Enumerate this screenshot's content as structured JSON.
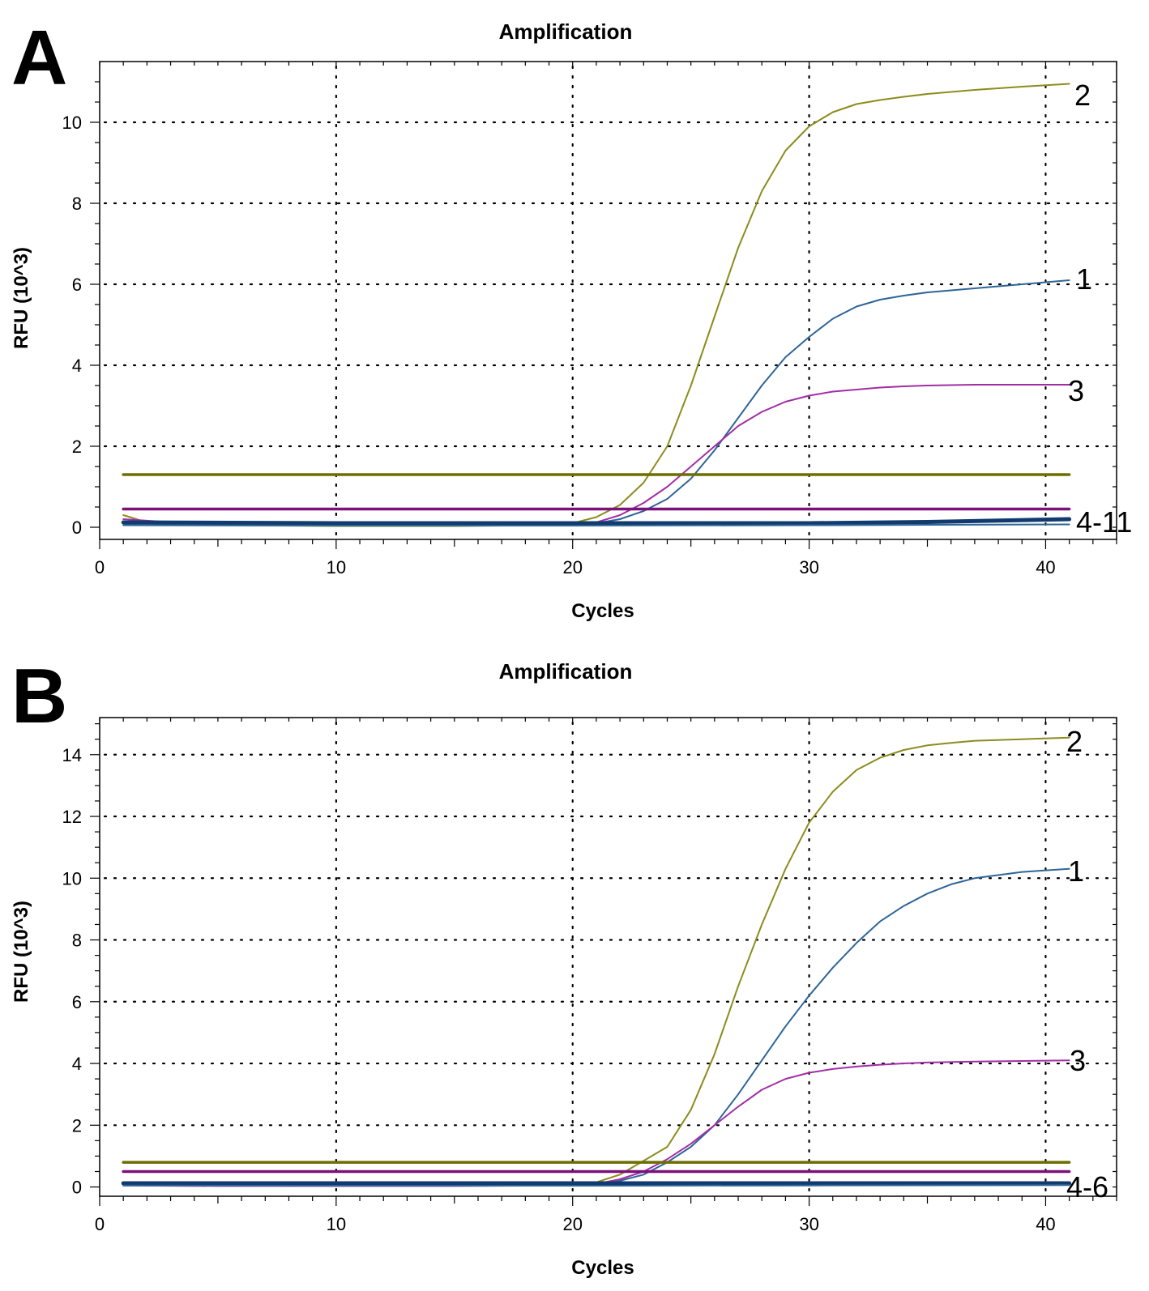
{
  "colors": {
    "olive": "#8c8c1e",
    "blue": "#2e6597",
    "magenta": "#a22ea5",
    "olive_threshold": "#6e6e00",
    "magenta_threshold": "#7b117b",
    "navy": "#113a6e"
  },
  "chart_data": [
    {
      "panel_label": "A",
      "type": "line",
      "title": "Amplification",
      "xlabel": "Cycles",
      "ylabel": "RFU (10^3)",
      "xlim": [
        0,
        43
      ],
      "ylim": [
        -0.3,
        11.5
      ],
      "xticks": [
        0,
        10,
        20,
        30,
        40
      ],
      "yticks": [
        0,
        2,
        4,
        6,
        8,
        10
      ],
      "grid": true,
      "series": [
        {
          "name": "2",
          "label": "2",
          "color": "olive",
          "x": [
            1,
            2,
            5,
            10,
            15,
            19,
            20,
            21,
            22,
            23,
            24,
            25,
            26,
            27,
            28,
            29,
            30,
            31,
            32,
            33,
            34,
            35,
            37,
            39,
            41
          ],
          "y": [
            0.3,
            0.12,
            0.05,
            0.03,
            0.03,
            0.05,
            0.1,
            0.25,
            0.55,
            1.1,
            2.0,
            3.5,
            5.2,
            6.9,
            8.3,
            9.3,
            9.9,
            10.25,
            10.45,
            10.55,
            10.63,
            10.7,
            10.8,
            10.88,
            10.95
          ]
        },
        {
          "name": "1",
          "label": "1",
          "color": "blue",
          "x": [
            1,
            5,
            10,
            15,
            20,
            21,
            22,
            23,
            24,
            25,
            26,
            27,
            28,
            29,
            30,
            31,
            32,
            33,
            34,
            35,
            37,
            39,
            41
          ],
          "y": [
            0.1,
            0.05,
            0.05,
            0.05,
            0.06,
            0.1,
            0.2,
            0.4,
            0.7,
            1.2,
            1.9,
            2.7,
            3.5,
            4.2,
            4.7,
            5.15,
            5.45,
            5.62,
            5.72,
            5.8,
            5.9,
            6.0,
            6.1
          ]
        },
        {
          "name": "3",
          "label": "3",
          "color": "magenta",
          "x": [
            1,
            5,
            10,
            15,
            20,
            21,
            22,
            23,
            24,
            25,
            26,
            27,
            28,
            29,
            30,
            31,
            32,
            33,
            34,
            35,
            37,
            39,
            41
          ],
          "y": [
            0.2,
            0.05,
            0.05,
            0.05,
            0.06,
            0.12,
            0.3,
            0.6,
            1.0,
            1.5,
            2.0,
            2.5,
            2.85,
            3.1,
            3.25,
            3.35,
            3.4,
            3.45,
            3.48,
            3.5,
            3.52,
            3.52,
            3.52
          ]
        },
        {
          "name": "threshold-olive",
          "color": "olive_threshold",
          "x": [
            1,
            41
          ],
          "y": [
            1.3,
            1.3
          ]
        },
        {
          "name": "threshold-magenta",
          "color": "magenta_threshold",
          "x": [
            1,
            41
          ],
          "y": [
            0.45,
            0.45
          ]
        },
        {
          "name": "4-11",
          "label": "4-11",
          "color": "navy",
          "x": [
            1,
            10,
            20,
            30,
            35,
            41
          ],
          "y": [
            0.12,
            0.1,
            0.1,
            0.1,
            0.13,
            0.2
          ]
        },
        {
          "name": "4-11-base",
          "color": "blue",
          "x": [
            1,
            10,
            20,
            30,
            41
          ],
          "y": [
            0.05,
            0.04,
            0.04,
            0.05,
            0.07
          ]
        }
      ],
      "annotations": [
        "2",
        "1",
        "3",
        "4-11"
      ]
    },
    {
      "panel_label": "B",
      "type": "line",
      "title": "Amplification",
      "xlabel": "Cycles",
      "ylabel": "RFU (10^3)",
      "xlim": [
        0,
        43
      ],
      "ylim": [
        -0.3,
        15.2
      ],
      "xticks": [
        0,
        10,
        20,
        30,
        40
      ],
      "yticks": [
        0,
        2,
        4,
        6,
        8,
        10,
        12,
        14
      ],
      "grid": true,
      "series": [
        {
          "name": "2",
          "label": "2",
          "color": "olive",
          "x": [
            1,
            5,
            10,
            15,
            20,
            21,
            22,
            23,
            24,
            25,
            26,
            27,
            28,
            29,
            30,
            31,
            32,
            33,
            34,
            35,
            36,
            37,
            39,
            41
          ],
          "y": [
            0.1,
            0.05,
            0.05,
            0.05,
            0.07,
            0.15,
            0.4,
            0.85,
            1.3,
            2.5,
            4.3,
            6.5,
            8.5,
            10.3,
            11.8,
            12.8,
            13.5,
            13.9,
            14.15,
            14.3,
            14.38,
            14.45,
            14.5,
            14.55
          ]
        },
        {
          "name": "1",
          "label": "1",
          "color": "blue",
          "x": [
            1,
            5,
            10,
            15,
            20,
            21,
            22,
            23,
            24,
            25,
            26,
            27,
            28,
            29,
            30,
            31,
            32,
            33,
            34,
            35,
            36,
            37,
            39,
            41
          ],
          "y": [
            0.1,
            0.05,
            0.05,
            0.05,
            0.06,
            0.1,
            0.2,
            0.4,
            0.8,
            1.3,
            2.0,
            3.0,
            4.1,
            5.2,
            6.2,
            7.1,
            7.9,
            8.6,
            9.1,
            9.5,
            9.8,
            10.0,
            10.2,
            10.3
          ]
        },
        {
          "name": "3",
          "label": "3",
          "color": "magenta",
          "x": [
            1,
            5,
            10,
            15,
            20,
            21,
            22,
            23,
            24,
            25,
            26,
            27,
            28,
            29,
            30,
            31,
            32,
            33,
            34,
            35,
            37,
            39,
            41
          ],
          "y": [
            0.05,
            0.03,
            0.03,
            0.03,
            0.05,
            0.1,
            0.25,
            0.5,
            0.9,
            1.4,
            2.0,
            2.6,
            3.15,
            3.5,
            3.7,
            3.82,
            3.9,
            3.96,
            4.0,
            4.03,
            4.06,
            4.08,
            4.1
          ]
        },
        {
          "name": "threshold-olive",
          "color": "olive_threshold",
          "x": [
            1,
            41
          ],
          "y": [
            0.8,
            0.8
          ]
        },
        {
          "name": "threshold-magenta",
          "color": "magenta_threshold",
          "x": [
            1,
            41
          ],
          "y": [
            0.5,
            0.5
          ]
        },
        {
          "name": "4-6",
          "label": "4-6",
          "color": "navy",
          "x": [
            1,
            10,
            20,
            30,
            41
          ],
          "y": [
            0.12,
            0.12,
            0.12,
            0.12,
            0.12
          ]
        },
        {
          "name": "4-6-base",
          "color": "blue",
          "x": [
            1,
            10,
            20,
            30,
            41
          ],
          "y": [
            0.05,
            0.04,
            0.04,
            0.05,
            0.06
          ]
        }
      ],
      "annotations": [
        "2",
        "1",
        "3",
        "4-6"
      ]
    }
  ]
}
